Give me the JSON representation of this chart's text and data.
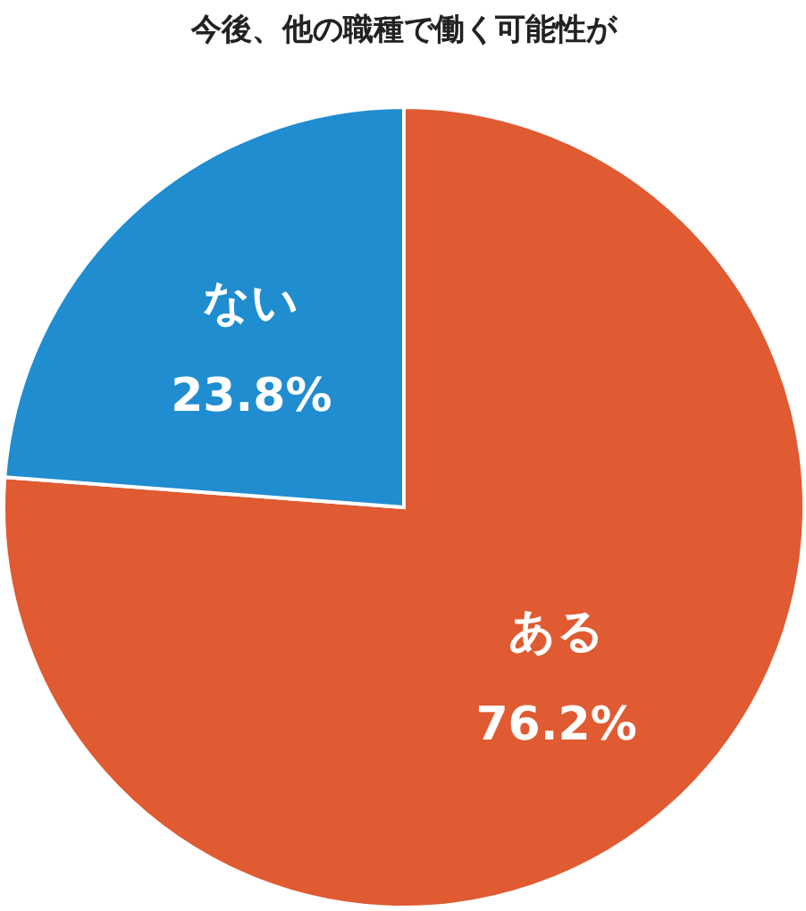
{
  "chart_data": {
    "type": "pie",
    "title": "今後、他の職種で働く可能性が",
    "categories": [
      "ある",
      "ない"
    ],
    "values": [
      76.2,
      23.8
    ],
    "value_labels": [
      "76.2%",
      "23.8%"
    ],
    "colors": [
      "#e05a32",
      "#1f8dd0"
    ]
  }
}
